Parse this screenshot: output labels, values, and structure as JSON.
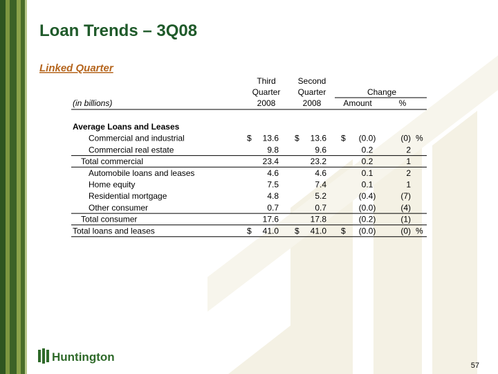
{
  "title": "Loan Trends – 3Q08",
  "subtitle": "Linked Quarter",
  "table": {
    "units": "(in billions)",
    "headers": {
      "third": [
        "Third",
        "Quarter",
        "2008"
      ],
      "second": [
        "Second",
        "Quarter",
        "2008"
      ],
      "change": "Change",
      "amount": "Amount",
      "pct": "%"
    },
    "currency": "$",
    "percent": "%",
    "rows": [
      {
        "label": "Average Loans and Leases",
        "level": 0,
        "bold": true
      },
      {
        "label": "Commercial and industrial",
        "level": 2,
        "q3": "13.6",
        "q2": "13.6",
        "amount": "(0.0)",
        "pct": "(0)",
        "signs": true
      },
      {
        "label": "Commercial real estate",
        "level": 2,
        "q3": "9.8",
        "q2": "9.6",
        "amount": "0.2",
        "pct": "2"
      },
      {
        "label": "Total commercial",
        "level": 1,
        "q3": "23.4",
        "q2": "23.2",
        "amount": "0.2",
        "pct": "1",
        "rule_above": true
      },
      {
        "label": "Automobile loans and leases",
        "level": 2,
        "q3": "4.6",
        "q2": "4.6",
        "amount": "0.1",
        "pct": "2",
        "rule_above": true
      },
      {
        "label": "Home equity",
        "level": 2,
        "q3": "7.5",
        "q2": "7.4",
        "amount": "0.1",
        "pct": "1"
      },
      {
        "label": "Residential mortgage",
        "level": 2,
        "q3": "4.8",
        "q2": "5.2",
        "amount": "(0.4)",
        "pct": "(7)"
      },
      {
        "label": "Other consumer",
        "level": 2,
        "q3": "0.7",
        "q2": "0.7",
        "amount": "(0.0)",
        "pct": "(4)"
      },
      {
        "label": "Total consumer",
        "level": 1,
        "q3": "17.6",
        "q2": "17.8",
        "amount": "(0.2)",
        "pct": "(1)",
        "rule_above": true
      },
      {
        "label": "Total loans and leases",
        "level": 0,
        "q3": "41.0",
        "q2": "41.0",
        "amount": "(0.0)",
        "pct": "(0)",
        "signs": true,
        "rule_above": true,
        "rule_below": true
      }
    ]
  },
  "footer": {
    "logo": "Huntington",
    "page": "57"
  }
}
